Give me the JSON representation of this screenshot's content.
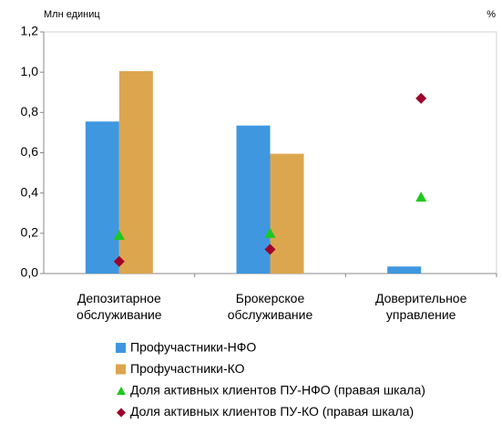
{
  "chart_data": {
    "type": "bar",
    "y_label": "Млн единиц",
    "y2_label": "%",
    "categories": [
      "Депозитарное обслуживание",
      "Брокерское обслуживание",
      "Доверительное управление"
    ],
    "series": [
      {
        "name": "Профучастники-НФО",
        "type": "bar",
        "color": "#3f97e0",
        "values": [
          0.755,
          0.735,
          0.035
        ]
      },
      {
        "name": "Профучастники-КО",
        "type": "bar",
        "color": "#dca64e",
        "values": [
          1.005,
          0.595,
          null
        ]
      },
      {
        "name": "Доля активных клиентов ПУ-НФО (правая шкала)",
        "type": "scatter",
        "marker": "triangle",
        "axis": "y2",
        "color": "#1ec81e",
        "values": [
          19,
          20,
          38
        ]
      },
      {
        "name": "Доля активных клиентов ПУ-КО (правая шкала)",
        "type": "scatter",
        "marker": "diamond",
        "axis": "y2",
        "color": "#a0002a",
        "values": [
          6,
          12,
          87
        ]
      }
    ],
    "ylim": [
      0,
      1.2
    ],
    "yticks": [
      {
        "value": 0,
        "label": "0,0"
      },
      {
        "value": 0.2,
        "label": "0,2"
      },
      {
        "value": 0.4,
        "label": "0,4"
      },
      {
        "value": 0.6,
        "label": "0,6"
      },
      {
        "value": 0.8,
        "label": "0,8"
      },
      {
        "value": 1.0,
        "label": "1,0"
      },
      {
        "value": 1.2,
        "label": "1,2"
      }
    ],
    "y2lim": [
      0,
      120
    ],
    "legend": "bottom"
  }
}
